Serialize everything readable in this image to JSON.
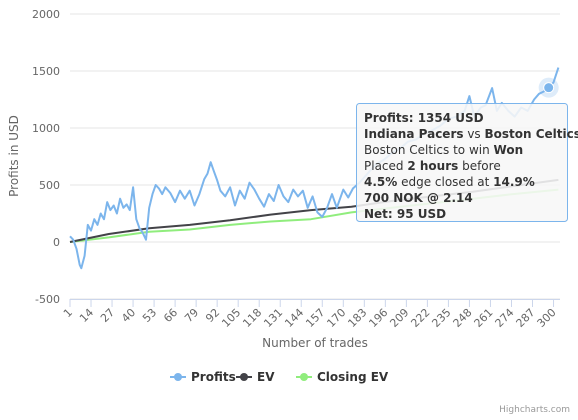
{
  "chart_data": {
    "type": "line",
    "y_axis_title": "Profits in USD",
    "x_axis_title": "Number of trades",
    "xlim": [
      1,
      304
    ],
    "xticks": [
      1,
      14,
      27,
      40,
      53,
      66,
      79,
      92,
      105,
      118,
      131,
      144,
      157,
      170,
      183,
      196,
      209,
      222,
      235,
      248,
      261,
      274,
      287,
      300
    ],
    "ylim": [
      -500,
      2000
    ],
    "yticks": [
      -500,
      0,
      500,
      1000,
      1500,
      2000
    ],
    "grid": true,
    "legend": "bottom",
    "credits": "Highcharts.com",
    "hover_series": 0,
    "hover_point": 99,
    "series": [
      {
        "name": "Profits",
        "color": "#7cb5ec",
        "x": [
          1,
          3,
          5,
          7,
          8,
          10,
          12,
          14,
          16,
          18,
          20,
          22,
          24,
          26,
          28,
          30,
          32,
          34,
          36,
          38,
          40,
          42,
          44,
          46,
          48,
          50,
          52,
          54,
          56,
          58,
          60,
          63,
          66,
          69,
          72,
          75,
          78,
          81,
          84,
          86,
          88,
          90,
          92,
          94,
          97,
          100,
          103,
          106,
          109,
          112,
          115,
          118,
          121,
          124,
          127,
          130,
          133,
          136,
          139,
          142,
          145,
          148,
          151,
          154,
          157,
          160,
          163,
          166,
          170,
          173,
          176,
          180,
          185,
          190,
          195,
          200,
          205,
          210,
          215,
          220,
          225,
          230,
          235,
          240,
          245,
          248,
          251,
          255,
          258,
          262,
          265,
          268,
          272,
          276,
          280,
          284,
          288,
          291,
          294,
          297,
          300,
          303
        ],
        "values": [
          50,
          20,
          -60,
          -200,
          -230,
          -120,
          150,
          100,
          200,
          150,
          250,
          200,
          350,
          280,
          320,
          250,
          380,
          300,
          330,
          280,
          480,
          200,
          120,
          80,
          20,
          300,
          420,
          500,
          470,
          420,
          480,
          430,
          350,
          450,
          380,
          450,
          320,
          420,
          550,
          600,
          700,
          620,
          540,
          450,
          400,
          480,
          320,
          450,
          380,
          520,
          460,
          380,
          310,
          420,
          360,
          500,
          400,
          350,
          460,
          400,
          450,
          300,
          400,
          260,
          220,
          300,
          420,
          300,
          460,
          390,
          470,
          520,
          600,
          680,
          720,
          780,
          820,
          880,
          900,
          950,
          980,
          1020,
          1080,
          1100,
          1150,
          1280,
          1100,
          1180,
          1200,
          1350,
          1150,
          1220,
          1150,
          1100,
          1180,
          1150,
          1250,
          1300,
          1320,
          1354,
          1400,
          1530
        ]
      },
      {
        "name": "EV",
        "color": "#434348",
        "x": [
          1,
          25,
          50,
          75,
          100,
          125,
          150,
          175,
          200,
          225,
          250,
          275,
          303
        ],
        "values": [
          0,
          70,
          120,
          150,
          190,
          240,
          280,
          310,
          360,
          400,
          440,
          490,
          545
        ]
      },
      {
        "name": "Closing EV",
        "color": "#90ed7d",
        "x": [
          1,
          25,
          50,
          75,
          100,
          125,
          150,
          175,
          200,
          225,
          250,
          275,
          303
        ],
        "values": [
          0,
          40,
          90,
          110,
          150,
          180,
          200,
          260,
          300,
          340,
          380,
          420,
          460
        ]
      }
    ],
    "tooltip": [
      [
        {
          "text": "Profits: 1354 USD",
          "bold": true
        }
      ],
      [
        {
          "text": "Indiana Pacers",
          "bold": true
        },
        {
          "text": " vs ",
          "bold": false
        },
        {
          "text": "Boston Celtics",
          "bold": true
        }
      ],
      [
        {
          "text": "Boston Celtics to win ",
          "bold": false
        },
        {
          "text": "Won",
          "bold": true
        }
      ],
      [
        {
          "text": "Placed ",
          "bold": false
        },
        {
          "text": "2 hours",
          "bold": true
        },
        {
          "text": " before",
          "bold": false
        }
      ],
      [
        {
          "text": "4.5%",
          "bold": true
        },
        {
          "text": " edge closed at ",
          "bold": false
        },
        {
          "text": "14.9%",
          "bold": true
        }
      ],
      [
        {
          "text": "700 NOK @ 2.14",
          "bold": true
        }
      ],
      [
        {
          "text": "Net: 95 USD",
          "bold": true
        }
      ]
    ]
  }
}
